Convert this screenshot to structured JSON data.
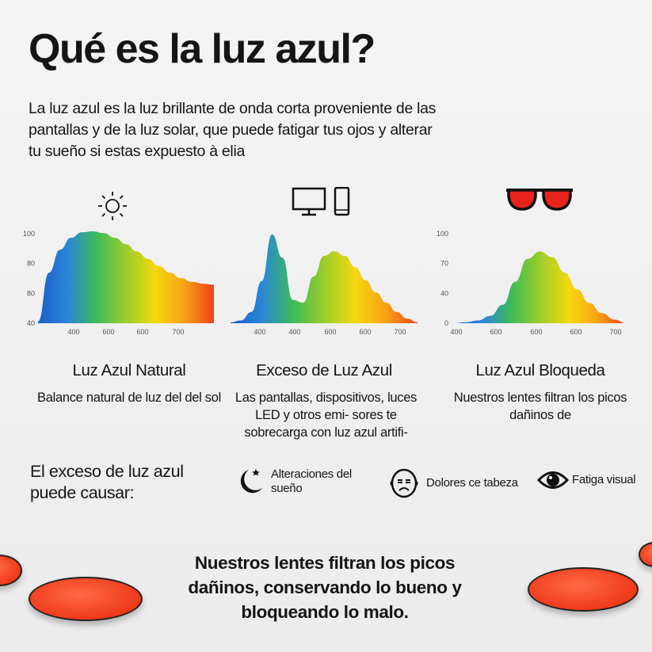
{
  "title": "Qué es la luz azul?",
  "intro": "La luz azul es la luz brillante de onda corta proveniente de las pantallas y de la luz solar, que puede fatigar tus ojos y alterar tu sueño si estas expuesto à elia",
  "colors": {
    "spectrum": [
      "#1a5fc8",
      "#2b86d8",
      "#3dbb5a",
      "#9acd2a",
      "#f5d80f",
      "#f7a215",
      "#f2421a"
    ],
    "lens": "#ee3a1a"
  },
  "chart_data": [
    {
      "type": "area",
      "icon": "sun-icon",
      "yticks": [
        "100",
        "80",
        "80",
        "40"
      ],
      "xticks": [
        "400",
        "600",
        "600",
        "700"
      ],
      "curve": [
        0.02,
        0.55,
        0.8,
        0.93,
        0.99,
        1.0,
        0.98,
        0.93,
        0.86,
        0.78,
        0.7,
        0.62,
        0.55,
        0.49,
        0.45,
        0.43,
        0.42
      ],
      "title": "Luz Azul Natural",
      "desc": "Balance natural de luz del del sol"
    },
    {
      "type": "area",
      "icon": "monitor-phone-icon",
      "yticks": [],
      "xticks": [
        "400",
        "400",
        "600",
        "600",
        "700"
      ],
      "curve": [
        0.01,
        0.03,
        0.12,
        0.45,
        0.95,
        0.7,
        0.25,
        0.22,
        0.5,
        0.72,
        0.77,
        0.72,
        0.6,
        0.46,
        0.33,
        0.22,
        0.12,
        0.05,
        0.01
      ],
      "title": "Exceso de Luz Azul",
      "desc": "Las pantallas, dispositivos, luces LED y otros emi- sores te sobrecarga con luz azul artifi-"
    },
    {
      "type": "area",
      "icon": "sunglasses-icon",
      "yticks": [
        "100",
        "70",
        "40",
        "0"
      ],
      "xticks": [
        "400",
        "600",
        "600",
        "600",
        "700"
      ],
      "curve": [
        0.0,
        0.01,
        0.03,
        0.08,
        0.2,
        0.45,
        0.7,
        0.78,
        0.72,
        0.55,
        0.37,
        0.22,
        0.11,
        0.04,
        0.0
      ],
      "title": "Luz Azul Bloqueda",
      "desc": "Nuestros lentes filtran los picos dañinos de"
    }
  ],
  "causes": "El exceso de luz azul puede causar:",
  "effects": [
    {
      "icon": "moon-star-icon",
      "label": "Alteraciones del sueño"
    },
    {
      "icon": "headache-face-icon",
      "label": "Dolores ce tabeza"
    },
    {
      "icon": "eye-icon",
      "label": "Fatiga visual"
    }
  ],
  "closing": "Nuestros lentes filtran los picos dañinos, conservando lo bueno y bloqueando lo malo."
}
